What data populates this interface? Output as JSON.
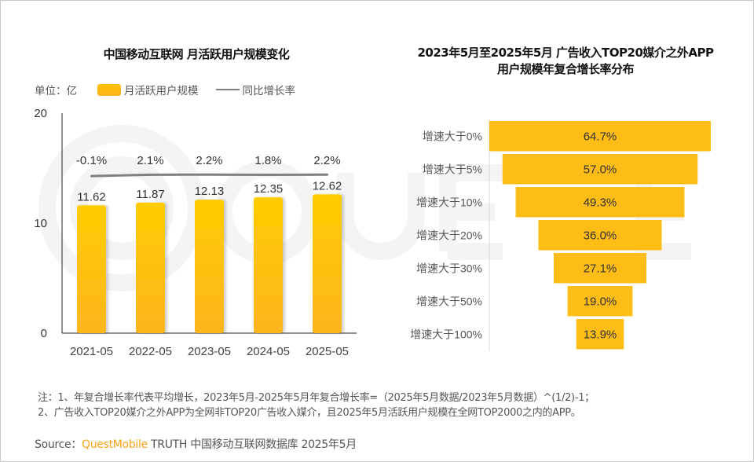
{
  "left_chart": {
    "title": "中国移动互联网 月活跃用户规模变化",
    "unit_label": "单位：亿",
    "legend": [
      {
        "label": "月活跃用户规模",
        "type": "bar",
        "color": "#ffc107"
      },
      {
        "label": "同比增长率",
        "type": "line",
        "color": "#7f7f7f"
      }
    ]
  },
  "right_chart": {
    "title_line1": "2023年5月至2025年5月 广告收入TOP20媒介之外APP",
    "title_line2": "用户规模年复合增长率分布"
  },
  "chart_data": [
    {
      "type": "bar",
      "title": "中国移动互联网 月活跃用户规模变化",
      "categories": [
        "2021-05",
        "2022-05",
        "2023-05",
        "2024-05",
        "2025-05"
      ],
      "series": [
        {
          "name": "月活跃用户规模",
          "type": "bar",
          "values": [
            11.62,
            11.87,
            12.13,
            12.35,
            12.62
          ],
          "labels": [
            "11.62",
            "11.87",
            "12.13",
            "12.35",
            "12.62"
          ]
        },
        {
          "name": "同比增长率",
          "type": "line",
          "values": [
            -0.1,
            2.1,
            2.2,
            1.8,
            2.2
          ],
          "labels": [
            "-0.1%",
            "2.1%",
            "2.2%",
            "1.8%",
            "2.2%"
          ]
        }
      ],
      "ylabel": "单位：亿",
      "ylim": [
        0,
        20
      ],
      "yticks": [
        "0",
        "10",
        "20"
      ],
      "legend_position": "top",
      "grid": false
    },
    {
      "type": "bar",
      "orientation": "funnel",
      "title": "2023年5月至2025年5月 广告收入TOP20媒介之外APP用户规模年复合增长率分布",
      "categories": [
        "增速大于0%",
        "增速大于5%",
        "增速大于10%",
        "增速大于20%",
        "增速大于30%",
        "增速大于50%",
        "增速大于100%"
      ],
      "values": [
        64.7,
        57.0,
        49.3,
        36.0,
        27.1,
        19.0,
        13.9
      ],
      "labels": [
        "64.7%",
        "57.0%",
        "49.3%",
        "36.0%",
        "27.1%",
        "19.0%",
        "13.9%"
      ],
      "color": "#fdbd16"
    }
  ],
  "notes": {
    "line1": "注：1、年复合增长率代表平均增长，2023年5月-2025年5月年复合增长率=（2025年5月数据/2023年5月数据）^(1/2)-1；",
    "line2": "2、广告收入TOP20媒介之外APP为全网非TOP20广告收入媒介，且2025年5月活跃用户规模在全网TOP2000之内的APP。"
  },
  "source": {
    "prefix": "Source：",
    "brand": "QuestMobile",
    "rest": " TRUTH 中国移动互联网数据库 2025年5月"
  }
}
